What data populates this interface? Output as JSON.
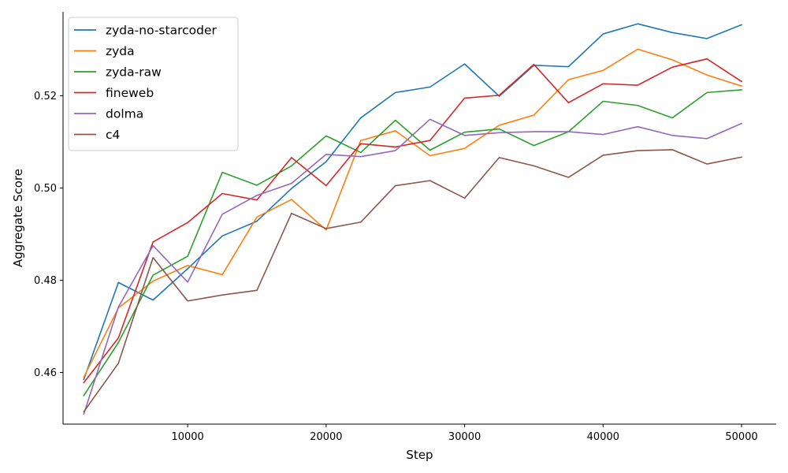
{
  "chart_data": {
    "type": "line",
    "xlabel": "Step",
    "ylabel": "Aggregate Score",
    "xlim": [
      1000,
      52500
    ],
    "ylim": [
      0.4488,
      0.5382
    ],
    "xticks": [
      10000,
      20000,
      30000,
      40000,
      50000
    ],
    "xtick_labels": [
      "10000",
      "20000",
      "30000",
      "40000",
      "50000"
    ],
    "yticks": [
      0.46,
      0.48,
      0.5,
      0.52
    ],
    "ytick_labels": [
      "0.46",
      "0.48",
      "0.50",
      "0.52"
    ],
    "grid": false,
    "legend_position": "top-left",
    "x": [
      2500,
      5000,
      7500,
      10000,
      12500,
      15000,
      17500,
      20000,
      22500,
      25000,
      27500,
      30000,
      32500,
      35000,
      37500,
      40000,
      42500,
      45000,
      47500,
      50000
    ],
    "series": [
      {
        "name": "zyda-no-starcoder",
        "color": "#1f77b4",
        "values": [
          0.4585,
          0.4795,
          0.4757,
          0.4825,
          0.4896,
          0.4928,
          0.4999,
          0.5057,
          0.5152,
          0.5207,
          0.5219,
          0.5269,
          0.5199,
          0.5266,
          0.5263,
          0.5334,
          0.5356,
          0.5337,
          0.5324,
          0.5354
        ]
      },
      {
        "name": "zyda",
        "color": "#ff7f0e",
        "values": [
          0.459,
          0.474,
          0.4798,
          0.4832,
          0.4812,
          0.4937,
          0.4975,
          0.4909,
          0.5103,
          0.5124,
          0.507,
          0.5086,
          0.5136,
          0.5158,
          0.5235,
          0.5255,
          0.5301,
          0.5278,
          0.5245,
          0.5221
        ]
      },
      {
        "name": "zyda-raw",
        "color": "#2ca02c",
        "values": [
          0.455,
          0.4665,
          0.4811,
          0.4852,
          0.5034,
          0.5006,
          0.5048,
          0.5113,
          0.5077,
          0.5147,
          0.5082,
          0.5121,
          0.5128,
          0.5092,
          0.5122,
          0.5188,
          0.5179,
          0.5152,
          0.5207,
          0.5213
        ]
      },
      {
        "name": "fineweb",
        "color": "#d62728",
        "values": [
          0.4578,
          0.4675,
          0.4883,
          0.4925,
          0.4988,
          0.4974,
          0.5066,
          0.5005,
          0.5096,
          0.5089,
          0.5103,
          0.5195,
          0.5201,
          0.5268,
          0.5185,
          0.5226,
          0.5223,
          0.5262,
          0.528,
          0.5231
        ]
      },
      {
        "name": "dolma",
        "color": "#9467bd",
        "values": [
          0.451,
          0.4742,
          0.4875,
          0.4796,
          0.4943,
          0.4984,
          0.501,
          0.5073,
          0.5068,
          0.5081,
          0.5149,
          0.5114,
          0.512,
          0.5122,
          0.5122,
          0.5116,
          0.5133,
          0.5114,
          0.5107,
          0.514
        ]
      },
      {
        "name": "c4",
        "color": "#8c564b",
        "values": [
          0.4515,
          0.462,
          0.4849,
          0.4755,
          0.4768,
          0.4778,
          0.4945,
          0.4912,
          0.4926,
          0.5005,
          0.5016,
          0.4978,
          0.5066,
          0.5048,
          0.5023,
          0.5071,
          0.5081,
          0.5083,
          0.5052,
          0.5067
        ]
      }
    ]
  }
}
